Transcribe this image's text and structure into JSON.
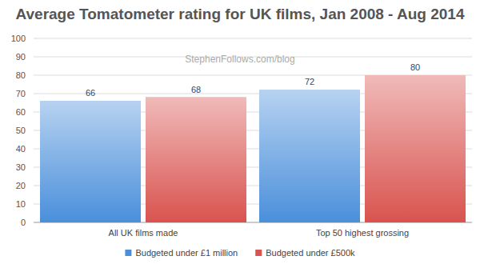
{
  "chart_data": {
    "type": "bar",
    "title": "Average Tomatometer rating for UK films, Jan 2008 - Aug 2014",
    "annotations": [
      "StephenFollows.com/blog"
    ],
    "categories": [
      "All UK films made",
      "Top 50 highest grossing"
    ],
    "series": [
      {
        "name": "Budgeted under £1 million",
        "color": "#4a8fdb",
        "values": [
          66,
          72
        ]
      },
      {
        "name": "Budgeted under £500k",
        "color": "#d9534f",
        "values": [
          68,
          80
        ]
      }
    ],
    "ylim": [
      0,
      100
    ],
    "yticks": [
      0,
      10,
      20,
      30,
      40,
      50,
      60,
      70,
      80,
      90,
      100
    ],
    "grid": true,
    "data_labels": true,
    "legend": "bottom"
  }
}
